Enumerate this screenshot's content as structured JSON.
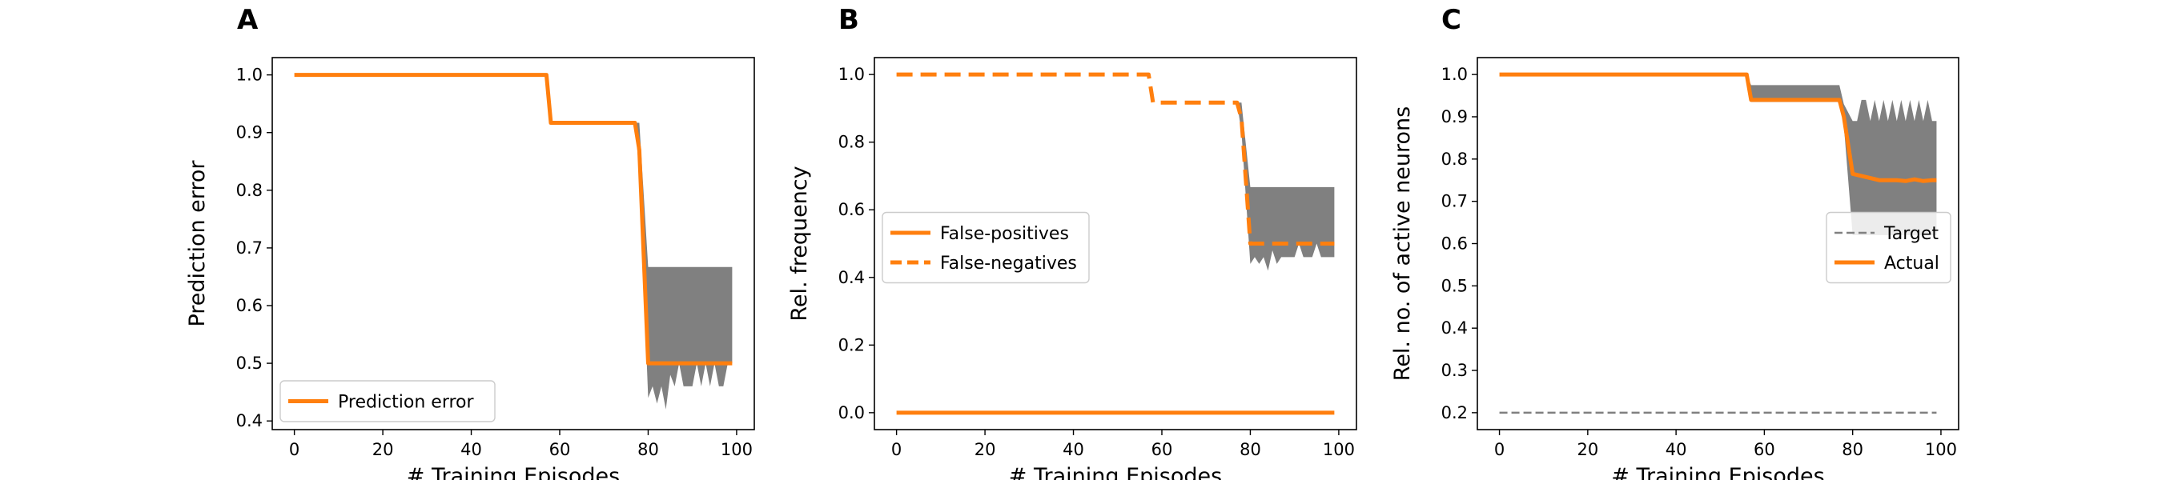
{
  "colors": {
    "line": "#ff7f0e",
    "band": "#808080",
    "target": "#808080",
    "axis": "#000000"
  },
  "chart_data": [
    {
      "panel": "A",
      "type": "line",
      "xlabel": "# Training Episodes",
      "ylabel": "Prediction error",
      "xlim": [
        -5,
        104
      ],
      "ylim": [
        0.385,
        1.03
      ],
      "xticks": [
        0,
        20,
        40,
        60,
        80,
        100
      ],
      "yticks": [
        0.4,
        0.5,
        0.6,
        0.7,
        0.8,
        0.9,
        1.0
      ],
      "ytick_labels": [
        "0.4",
        "0.5",
        "0.6",
        "0.7",
        "0.8",
        "0.9",
        "1.0"
      ],
      "legend_position": "lower-left",
      "series": [
        {
          "name": "Prediction error",
          "style": "solid",
          "x": [
            0,
            57,
            58,
            76,
            77,
            78,
            80,
            81,
            99
          ],
          "y": [
            1.0,
            1.0,
            0.917,
            0.917,
            0.917,
            0.87,
            0.5,
            0.5,
            0.5
          ]
        }
      ],
      "band": {
        "x": [
          77,
          78,
          80,
          81,
          82,
          83,
          84,
          85,
          86,
          87,
          88,
          89,
          90,
          91,
          92,
          93,
          94,
          95,
          96,
          97,
          98,
          99
        ],
        "upper": [
          0.917,
          0.917,
          0.667,
          0.667,
          0.667,
          0.667,
          0.667,
          0.667,
          0.667,
          0.667,
          0.667,
          0.667,
          0.667,
          0.667,
          0.667,
          0.667,
          0.667,
          0.667,
          0.667,
          0.667,
          0.667,
          0.667
        ],
        "lower": [
          0.917,
          0.83,
          0.44,
          0.46,
          0.43,
          0.46,
          0.42,
          0.48,
          0.46,
          0.5,
          0.46,
          0.46,
          0.46,
          0.5,
          0.46,
          0.5,
          0.46,
          0.5,
          0.46,
          0.46,
          0.5,
          0.5
        ]
      }
    },
    {
      "panel": "B",
      "type": "line",
      "xlabel": "# Training Episodes",
      "ylabel": "Rel. frequency",
      "xlim": [
        -5,
        104
      ],
      "ylim": [
        -0.05,
        1.05
      ],
      "xticks": [
        0,
        20,
        40,
        60,
        80,
        100
      ],
      "yticks": [
        0.0,
        0.2,
        0.4,
        0.6,
        0.8,
        1.0
      ],
      "ytick_labels": [
        "0.0",
        "0.2",
        "0.4",
        "0.6",
        "0.8",
        "1.0"
      ],
      "legend_position": "center-left",
      "series": [
        {
          "name": "False-positives",
          "style": "solid",
          "x": [
            0,
            99
          ],
          "y": [
            0.0,
            0.0
          ]
        },
        {
          "name": "False-negatives",
          "style": "dashed",
          "x": [
            0,
            57,
            58,
            76,
            77,
            78,
            80,
            81,
            99
          ],
          "y": [
            1.0,
            1.0,
            0.917,
            0.917,
            0.917,
            0.87,
            0.5,
            0.5,
            0.5
          ]
        }
      ],
      "band": {
        "x": [
          77,
          78,
          80,
          81,
          82,
          83,
          84,
          85,
          86,
          87,
          88,
          89,
          90,
          91,
          92,
          93,
          94,
          95,
          96,
          97,
          98,
          99
        ],
        "upper": [
          0.917,
          0.917,
          0.667,
          0.667,
          0.667,
          0.667,
          0.667,
          0.667,
          0.667,
          0.667,
          0.667,
          0.667,
          0.667,
          0.667,
          0.667,
          0.667,
          0.667,
          0.667,
          0.667,
          0.667,
          0.667,
          0.667
        ],
        "lower": [
          0.917,
          0.83,
          0.44,
          0.46,
          0.44,
          0.46,
          0.42,
          0.48,
          0.44,
          0.46,
          0.46,
          0.46,
          0.46,
          0.5,
          0.46,
          0.46,
          0.46,
          0.5,
          0.46,
          0.46,
          0.46,
          0.46
        ]
      }
    },
    {
      "panel": "C",
      "type": "line",
      "xlabel": "# Training Episodes",
      "ylabel": "Rel. no. of active neurons",
      "xlim": [
        -5,
        104
      ],
      "ylim": [
        0.16,
        1.04
      ],
      "xticks": [
        0,
        20,
        40,
        60,
        80,
        100
      ],
      "yticks": [
        0.2,
        0.3,
        0.4,
        0.5,
        0.6,
        0.7,
        0.8,
        0.9,
        1.0
      ],
      "ytick_labels": [
        "0.2",
        "0.3",
        "0.4",
        "0.5",
        "0.6",
        "0.7",
        "0.8",
        "0.9",
        "1.0"
      ],
      "legend_position": "center-right",
      "series": [
        {
          "name": "Target",
          "style": "dashed-thin",
          "x": [
            0,
            99
          ],
          "y": [
            0.2,
            0.2
          ]
        },
        {
          "name": "Actual",
          "style": "solid",
          "x": [
            0,
            56,
            57,
            76,
            77,
            78,
            80,
            82,
            84,
            86,
            88,
            90,
            92,
            94,
            96,
            98,
            99
          ],
          "y": [
            1.0,
            1.0,
            0.94,
            0.94,
            0.94,
            0.9,
            0.765,
            0.76,
            0.755,
            0.75,
            0.75,
            0.75,
            0.748,
            0.752,
            0.748,
            0.75,
            0.75
          ]
        }
      ],
      "band": {
        "x": [
          56,
          57,
          76,
          77,
          78,
          80,
          81,
          82,
          83,
          84,
          85,
          86,
          87,
          88,
          89,
          90,
          91,
          92,
          93,
          94,
          95,
          96,
          97,
          98,
          99
        ],
        "upper": [
          1.0,
          0.975,
          0.975,
          0.975,
          0.93,
          0.89,
          0.89,
          0.94,
          0.94,
          0.89,
          0.94,
          0.89,
          0.94,
          0.89,
          0.94,
          0.89,
          0.94,
          0.89,
          0.94,
          0.89,
          0.94,
          0.89,
          0.94,
          0.89,
          0.89
        ],
        "lower": [
          1.0,
          0.935,
          0.935,
          0.935,
          0.88,
          0.62,
          0.62,
          0.62,
          0.62,
          0.62,
          0.62,
          0.62,
          0.62,
          0.62,
          0.62,
          0.62,
          0.62,
          0.62,
          0.62,
          0.62,
          0.62,
          0.62,
          0.62,
          0.62,
          0.62
        ]
      }
    }
  ]
}
